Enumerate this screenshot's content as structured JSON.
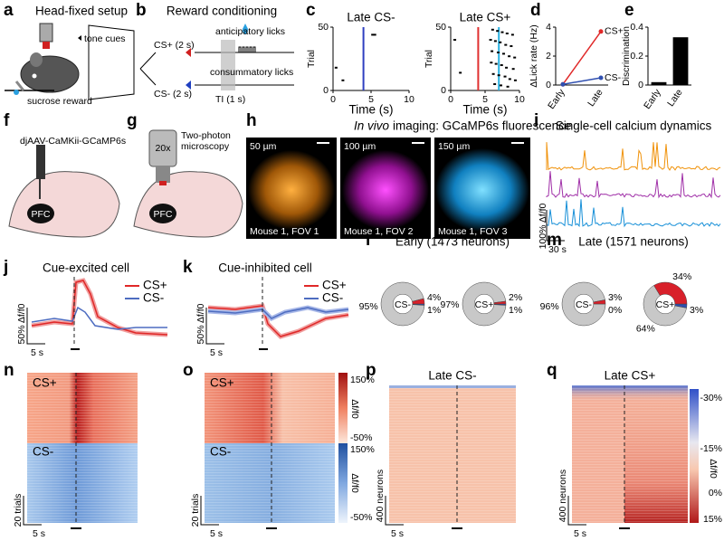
{
  "panels": {
    "a": {
      "letter": "a",
      "title": "Head-fixed setup",
      "tone": "tone cues",
      "reward": "sucrose reward"
    },
    "b": {
      "letter": "b",
      "title": "Reward conditioning",
      "cs_plus": "CS+ (2 s)",
      "cs_minus": "CS- (2 s)",
      "anticipatory": "anticipatory licks",
      "consummatory": "consummatory licks",
      "ti": "TI (1 s)"
    },
    "c": {
      "letter": "c"
    },
    "d": {
      "letter": "d"
    },
    "e": {
      "letter": "e"
    },
    "f": {
      "letter": "f",
      "virus": "djAAV-CaMKii-GCaMP6s",
      "region": "PFC"
    },
    "g": {
      "letter": "g",
      "scope": "Two-photon",
      "scope2": "microscopy",
      "objective": "20x",
      "region": "PFC"
    },
    "h": {
      "letter": "h",
      "title_italic": "In vivo",
      "title": "imaging: GCaMP6s fluorescence",
      "images": [
        {
          "depth": "50 µm",
          "label": "Mouse 1, FOV 1"
        },
        {
          "depth": "100 µm",
          "label": "Mouse 1, FOV 2"
        },
        {
          "depth": "150 µm",
          "label": "Mouse 1, FOV 3"
        }
      ]
    },
    "i": {
      "letter": "i",
      "title": "Single-cell calcium dynamics",
      "scale_y": "100% Δf/f0",
      "scale_x": "30 s"
    },
    "j": {
      "letter": "j",
      "title": "Cue-excited cell",
      "legend": [
        "CS+",
        "CS-"
      ],
      "scale_y": "50% Δf/f0",
      "scale_x": "5 s"
    },
    "k": {
      "letter": "k",
      "title": "Cue-inhibited cell",
      "legend": [
        "CS+",
        "CS-"
      ],
      "scale_y": "50% Δf/f0",
      "scale_x": "5 s"
    },
    "l": {
      "letter": "l",
      "title": "Early (1473 neurons)"
    },
    "m": {
      "letter": "m",
      "title": "Late (1571 neurons)"
    },
    "n": {
      "letter": "n",
      "top": "CS+",
      "bottom": "CS-",
      "scale_y": "20 trials",
      "scale_x": "5 s"
    },
    "o": {
      "letter": "o",
      "top": "CS+",
      "bottom": "CS-",
      "scale_y": "20 trials",
      "scale_x": "5 s",
      "colorbar_top": {
        "max": "150%",
        "label": "Δf/f0",
        "min": "-50%"
      },
      "colorbar_bottom": {
        "max": "150%",
        "label": "Δf/f0",
        "min": "-50%"
      }
    },
    "p": {
      "letter": "p",
      "title": "Late CS-",
      "scale_y": "400 neurons",
      "scale_x": "5 s"
    },
    "q": {
      "letter": "q",
      "title": "Late CS+",
      "scale_y": "400 neurons",
      "scale_x": "5 s",
      "colorbar": {
        "ticks": [
          "-30%",
          "-15%",
          "0%",
          "15%"
        ],
        "label": "Δf/f0"
      }
    }
  },
  "chart_data": [
    {
      "type": "scatter",
      "title": "Late CS-",
      "xlabel": "Time (s)",
      "ylabel": "Trial",
      "xlim": [
        0,
        10
      ],
      "ylim": [
        0,
        50
      ],
      "xticks": [
        0,
        5,
        10
      ],
      "yticks": [
        0,
        50
      ],
      "x": [
        5.2,
        5.5,
        0.4,
        1.3
      ],
      "y": [
        44,
        44,
        18,
        8
      ],
      "color": "#000000",
      "vlines": [
        {
          "x": 4,
          "color": "#2f3fc0"
        }
      ]
    },
    {
      "type": "scatter",
      "title": "Late CS+",
      "xlabel": "Time (s)",
      "ylabel": "Trial",
      "xlim": [
        0,
        10
      ],
      "ylim": [
        0,
        50
      ],
      "xticks": [
        0,
        5,
        10
      ],
      "yticks": [
        0,
        50
      ],
      "x": [
        6.1,
        6.8,
        7.5,
        8.2,
        9.0,
        5.8,
        6.5,
        7.2,
        8.0,
        8.8,
        6.0,
        6.9,
        7.7,
        8.5,
        9.3,
        5.9,
        6.6,
        7.4,
        8.1,
        9.1,
        6.2,
        7.0,
        7.9,
        8.6,
        9.4,
        6.4,
        7.3,
        8.3,
        0.6,
        1.4
      ],
      "y": [
        48,
        47,
        46,
        45,
        44,
        40,
        39,
        38,
        36,
        35,
        31,
        30,
        29,
        27,
        26,
        22,
        21,
        20,
        18,
        17,
        13,
        12,
        11,
        9,
        8,
        5,
        4,
        3,
        40,
        14
      ],
      "color": "#000000",
      "vlines": [
        {
          "x": 4,
          "color": "#e03030"
        },
        {
          "x": 7,
          "color": "#2ab0e0"
        }
      ]
    },
    {
      "type": "line",
      "ylabel": "ΔLick rate (Hz)",
      "categories": [
        "Early",
        "Late"
      ],
      "ylim": [
        0,
        4
      ],
      "yticks": [
        0,
        2,
        4
      ],
      "series": [
        {
          "name": "CS+",
          "color": "#e02828",
          "values": [
            0.05,
            3.7
          ]
        },
        {
          "name": "CS-",
          "color": "#2f4fb0",
          "values": [
            0.05,
            0.5
          ]
        }
      ]
    },
    {
      "type": "bar",
      "ylabel": "Discrimination",
      "categories": [
        "Early",
        "Late"
      ],
      "values": [
        0.02,
        0.33
      ],
      "color": "#000000",
      "ylim": [
        0,
        0.4
      ],
      "yticks": [
        0,
        0.2,
        0.4
      ]
    },
    {
      "type": "pie",
      "center_label": "CS-",
      "values": [
        1,
        95,
        4
      ],
      "value_labels": [
        "1%",
        "95%",
        "4%"
      ],
      "colors": [
        "#2f4fb0",
        "#c8c8c8",
        "#d8202a"
      ]
    },
    {
      "type": "pie",
      "center_label": "CS+",
      "values": [
        1,
        97,
        2
      ],
      "value_labels": [
        "1%",
        "97%",
        "2%"
      ],
      "colors": [
        "#2f4fb0",
        "#c8c8c8",
        "#d8202a"
      ]
    },
    {
      "type": "pie",
      "center_label": "CS-",
      "values": [
        0,
        96,
        3
      ],
      "value_labels": [
        "0%",
        "96%",
        "3%"
      ],
      "colors": [
        "#2f4fb0",
        "#c8c8c8",
        "#d8202a"
      ]
    },
    {
      "type": "pie",
      "center_label": "CS+",
      "values": [
        3,
        64,
        34
      ],
      "value_labels": [
        "3%",
        "64%",
        "34%"
      ],
      "colors": [
        "#2f4fb0",
        "#c8c8c8",
        "#d8202a"
      ]
    }
  ]
}
